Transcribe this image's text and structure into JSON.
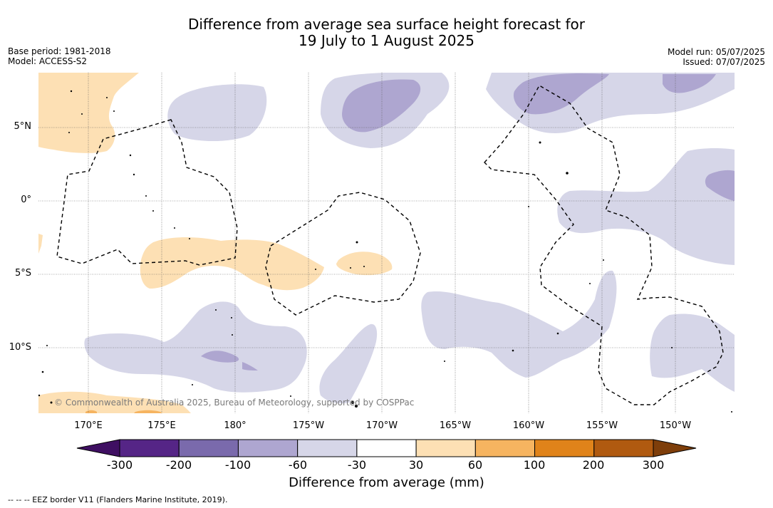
{
  "title_line1": "Difference from average sea surface height forecast for",
  "title_line2": "19 July to 1 August 2025",
  "base_period": "Base period: 1981-2018",
  "model": "Model: ACCESS-S2",
  "model_run": "Model run: 05/07/2025",
  "issued": "Issued: 07/07/2025",
  "copyright": "© Commonwealth of Australia 2025, Bureau of Meteorology, supported by COSPPac",
  "latitude_labels": [
    "5°N",
    "0°",
    "5°S",
    "10°S"
  ],
  "longitude_labels": [
    "170°E",
    "175°E",
    "180°",
    "175°W",
    "170°W",
    "165°W",
    "160°W",
    "155°W",
    "150°W"
  ],
  "colorbar": {
    "title": "Difference from average (mm)",
    "ticks": [
      "-300",
      "-200",
      "-100",
      "-60",
      "-30",
      "30",
      "60",
      "100",
      "200",
      "300"
    ],
    "colors": [
      "#3f0f62",
      "#552586",
      "#7a6aac",
      "#aea6d0",
      "#d6d6e8",
      "#ffffff",
      "#fde0b4",
      "#f6b460",
      "#e0831a",
      "#b05a10",
      "#7e3e0a"
    ]
  },
  "footer": "-- -- -- EEZ border V11 (Flanders Marine Institute, 2019)."
}
